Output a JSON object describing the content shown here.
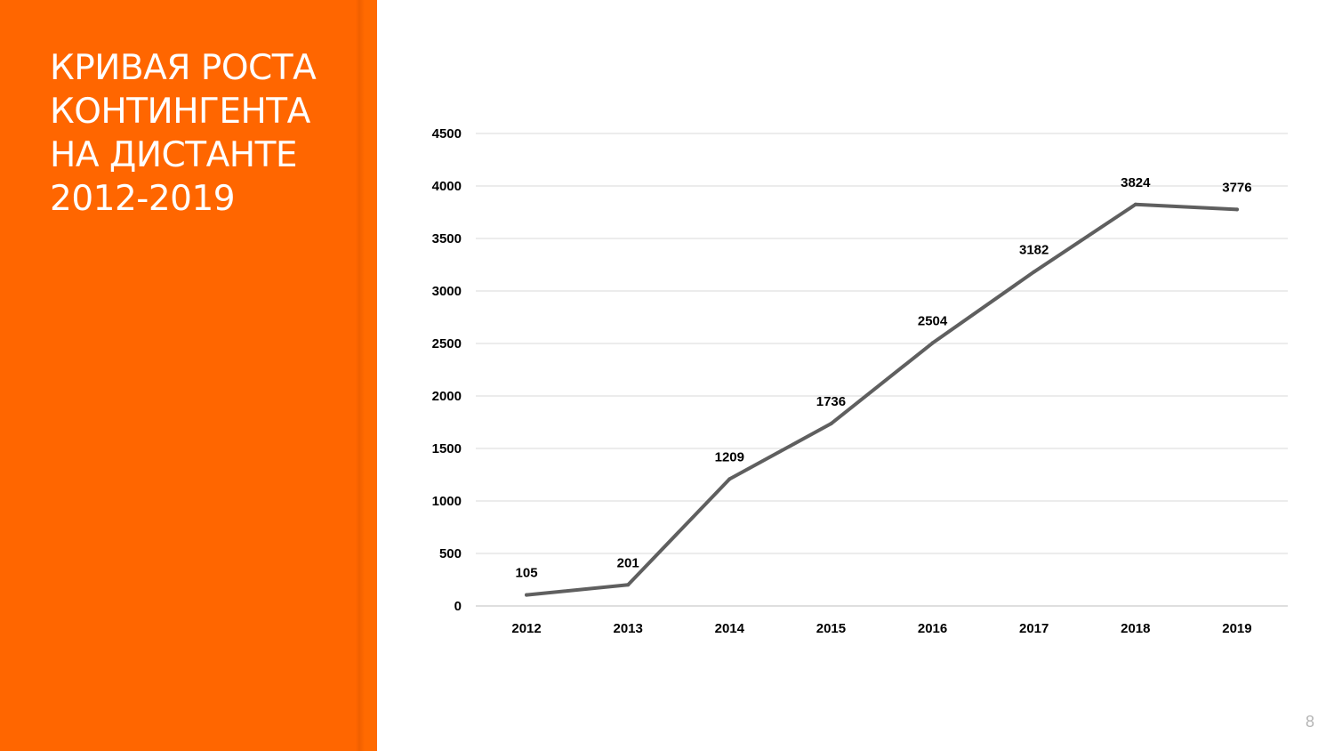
{
  "slide": {
    "title_lines": [
      "КРИВАЯ РОСТА",
      "КОНТИНГЕНТА",
      "НА ДИСТАНТЕ",
      "2012-2019"
    ],
    "page_number": "8",
    "accent_color": "#ff6600"
  },
  "chart_data": {
    "type": "line",
    "title": "",
    "xlabel": "",
    "ylabel": "",
    "categories": [
      "2012",
      "2013",
      "2014",
      "2015",
      "2016",
      "2017",
      "2018",
      "2019"
    ],
    "series": [
      {
        "values": [
          105,
          201,
          1209,
          1736,
          2504,
          3182,
          3824,
          3776
        ],
        "color": "#5f5f5f"
      }
    ],
    "ylim": [
      0,
      4500
    ],
    "yticks": [
      0,
      500,
      1000,
      1500,
      2000,
      2500,
      3000,
      3500,
      4000,
      4500
    ],
    "grid": true,
    "legend": "none",
    "data_labels": [
      "105",
      "201",
      "1209",
      "1736",
      "2504",
      "3182",
      "3824",
      "3776"
    ]
  }
}
